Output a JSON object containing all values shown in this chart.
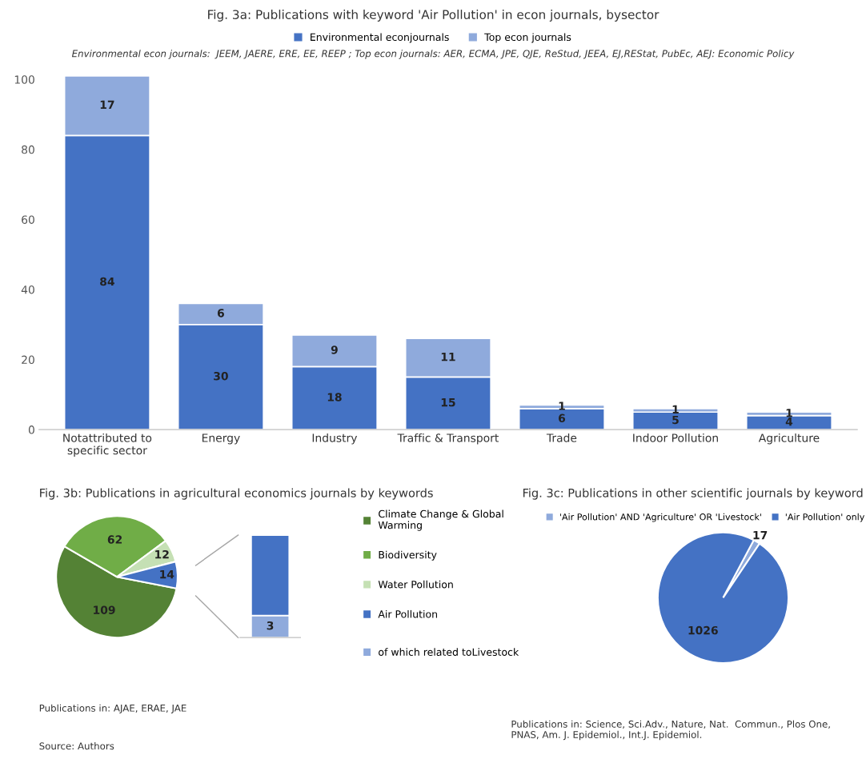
{
  "chart_data": [
    {
      "type": "bar",
      "stacked": true,
      "title": "Fig. 3a: Publications with keyword 'Air Pollution' in econ journals, bysector",
      "subtitle": "Environmental econ journals:  JEEM, JAERE, ERE, EE, REEP ; Top econ journals: AER, ECMA, JPE, QJE, ReStud, JEEA, EJ,REStat, PubEc, AEJ: Economic Policy",
      "categories": [
        "Notattributed to\nspecific sector",
        "Energy",
        "Industry",
        "Traffic & Transport",
        "Trade",
        "Indoor Pollution",
        "Agriculture"
      ],
      "series": [
        {
          "name": "Environmental econjournals",
          "color": "#4472c4",
          "values": [
            84,
            30,
            18,
            15,
            6,
            5,
            4
          ]
        },
        {
          "name": "Top econ journals",
          "color": "#8faadc",
          "values": [
            17,
            6,
            9,
            11,
            1,
            1,
            1
          ]
        }
      ],
      "ylim": [
        0,
        101
      ],
      "yticks": [
        0,
        20,
        40,
        60,
        80,
        100
      ],
      "data_labels": true,
      "legend": "top",
      "grid": false
    },
    {
      "type": "pie",
      "title": "Fig. 3b: Publications in agricultural economics journals by keywords",
      "categories": [
        "Climate Change & Global\nWarming",
        "Biodiversity",
        "Water Pollution",
        "Air Pollution"
      ],
      "values": [
        109,
        62,
        12,
        14
      ],
      "colors": [
        "#548235",
        "#70ad47",
        "#c5e0b4",
        "#4472c4"
      ],
      "data_labels": true,
      "legend": "right",
      "annotations": [
        "Publications in: AJAE, ERAE, JAE",
        "Source: Authors"
      ]
    },
    {
      "type": "bar",
      "stacked": true,
      "categories": [
        null
      ],
      "series": [
        {
          "color": "#8faadc",
          "name": "of which related toLivestock",
          "values": [
            3
          ],
          "value_labels": [
            "3"
          ]
        },
        {
          "color": "#4472c4",
          "values": [
            11
          ],
          "value_labels": [
            null
          ]
        }
      ],
      "ylim": [
        0,
        14
      ],
      "tick_labels": false,
      "legend": "right"
    },
    {
      "type": "pie",
      "title": "Fig. 3c: Publications in other scientific journals by keyword",
      "categories": [
        "'Air Pollution' AND 'Agriculture' OR 'Livestock'",
        "'Air Pollution' only"
      ],
      "values": [
        17,
        1026
      ],
      "colors": [
        "#8faadc",
        "#4472c4"
      ],
      "data_labels": true,
      "legend": "top",
      "annotations": [
        "Publications in: Science, Sci.Adv., Nature, Nat.  Commun., Plos One,\nPNAS, Am. J. Epidemiol., Int.J. Epidemiol."
      ]
    }
  ]
}
